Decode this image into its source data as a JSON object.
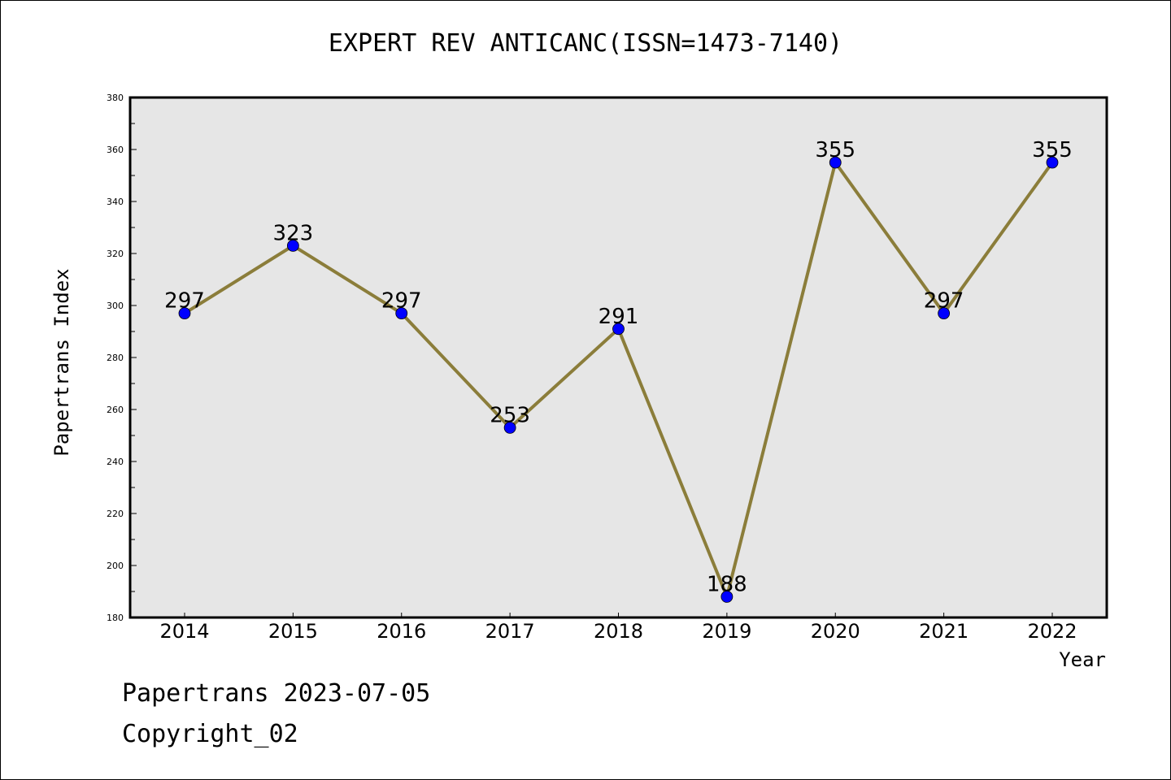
{
  "chart_data": {
    "type": "line",
    "title": "EXPERT REV ANTICANC(ISSN=1473-7140)",
    "xlabel": "Year",
    "ylabel": "Papertrans Index",
    "categories": [
      "2014",
      "2015",
      "2016",
      "2017",
      "2018",
      "2019",
      "2020",
      "2021",
      "2022"
    ],
    "series": [
      {
        "values": [
          297,
          323,
          297,
          253,
          291,
          188,
          355,
          297,
          355
        ]
      }
    ],
    "data_labels": [
      "297",
      "323",
      "297",
      "253",
      "291",
      "188",
      "355",
      "297",
      "355"
    ],
    "ylim": [
      180,
      380
    ],
    "yticks": [
      "180",
      "200",
      "220",
      "240",
      "260",
      "280",
      "300",
      "320",
      "340",
      "360",
      "380"
    ],
    "grid": false,
    "line_color": "#8b7d3a",
    "marker_color": "#0000ff",
    "plot_background": "#e6e6e6"
  },
  "footer": {
    "line1": "Papertrans 2023-07-05",
    "line2": "Copyright_02"
  }
}
